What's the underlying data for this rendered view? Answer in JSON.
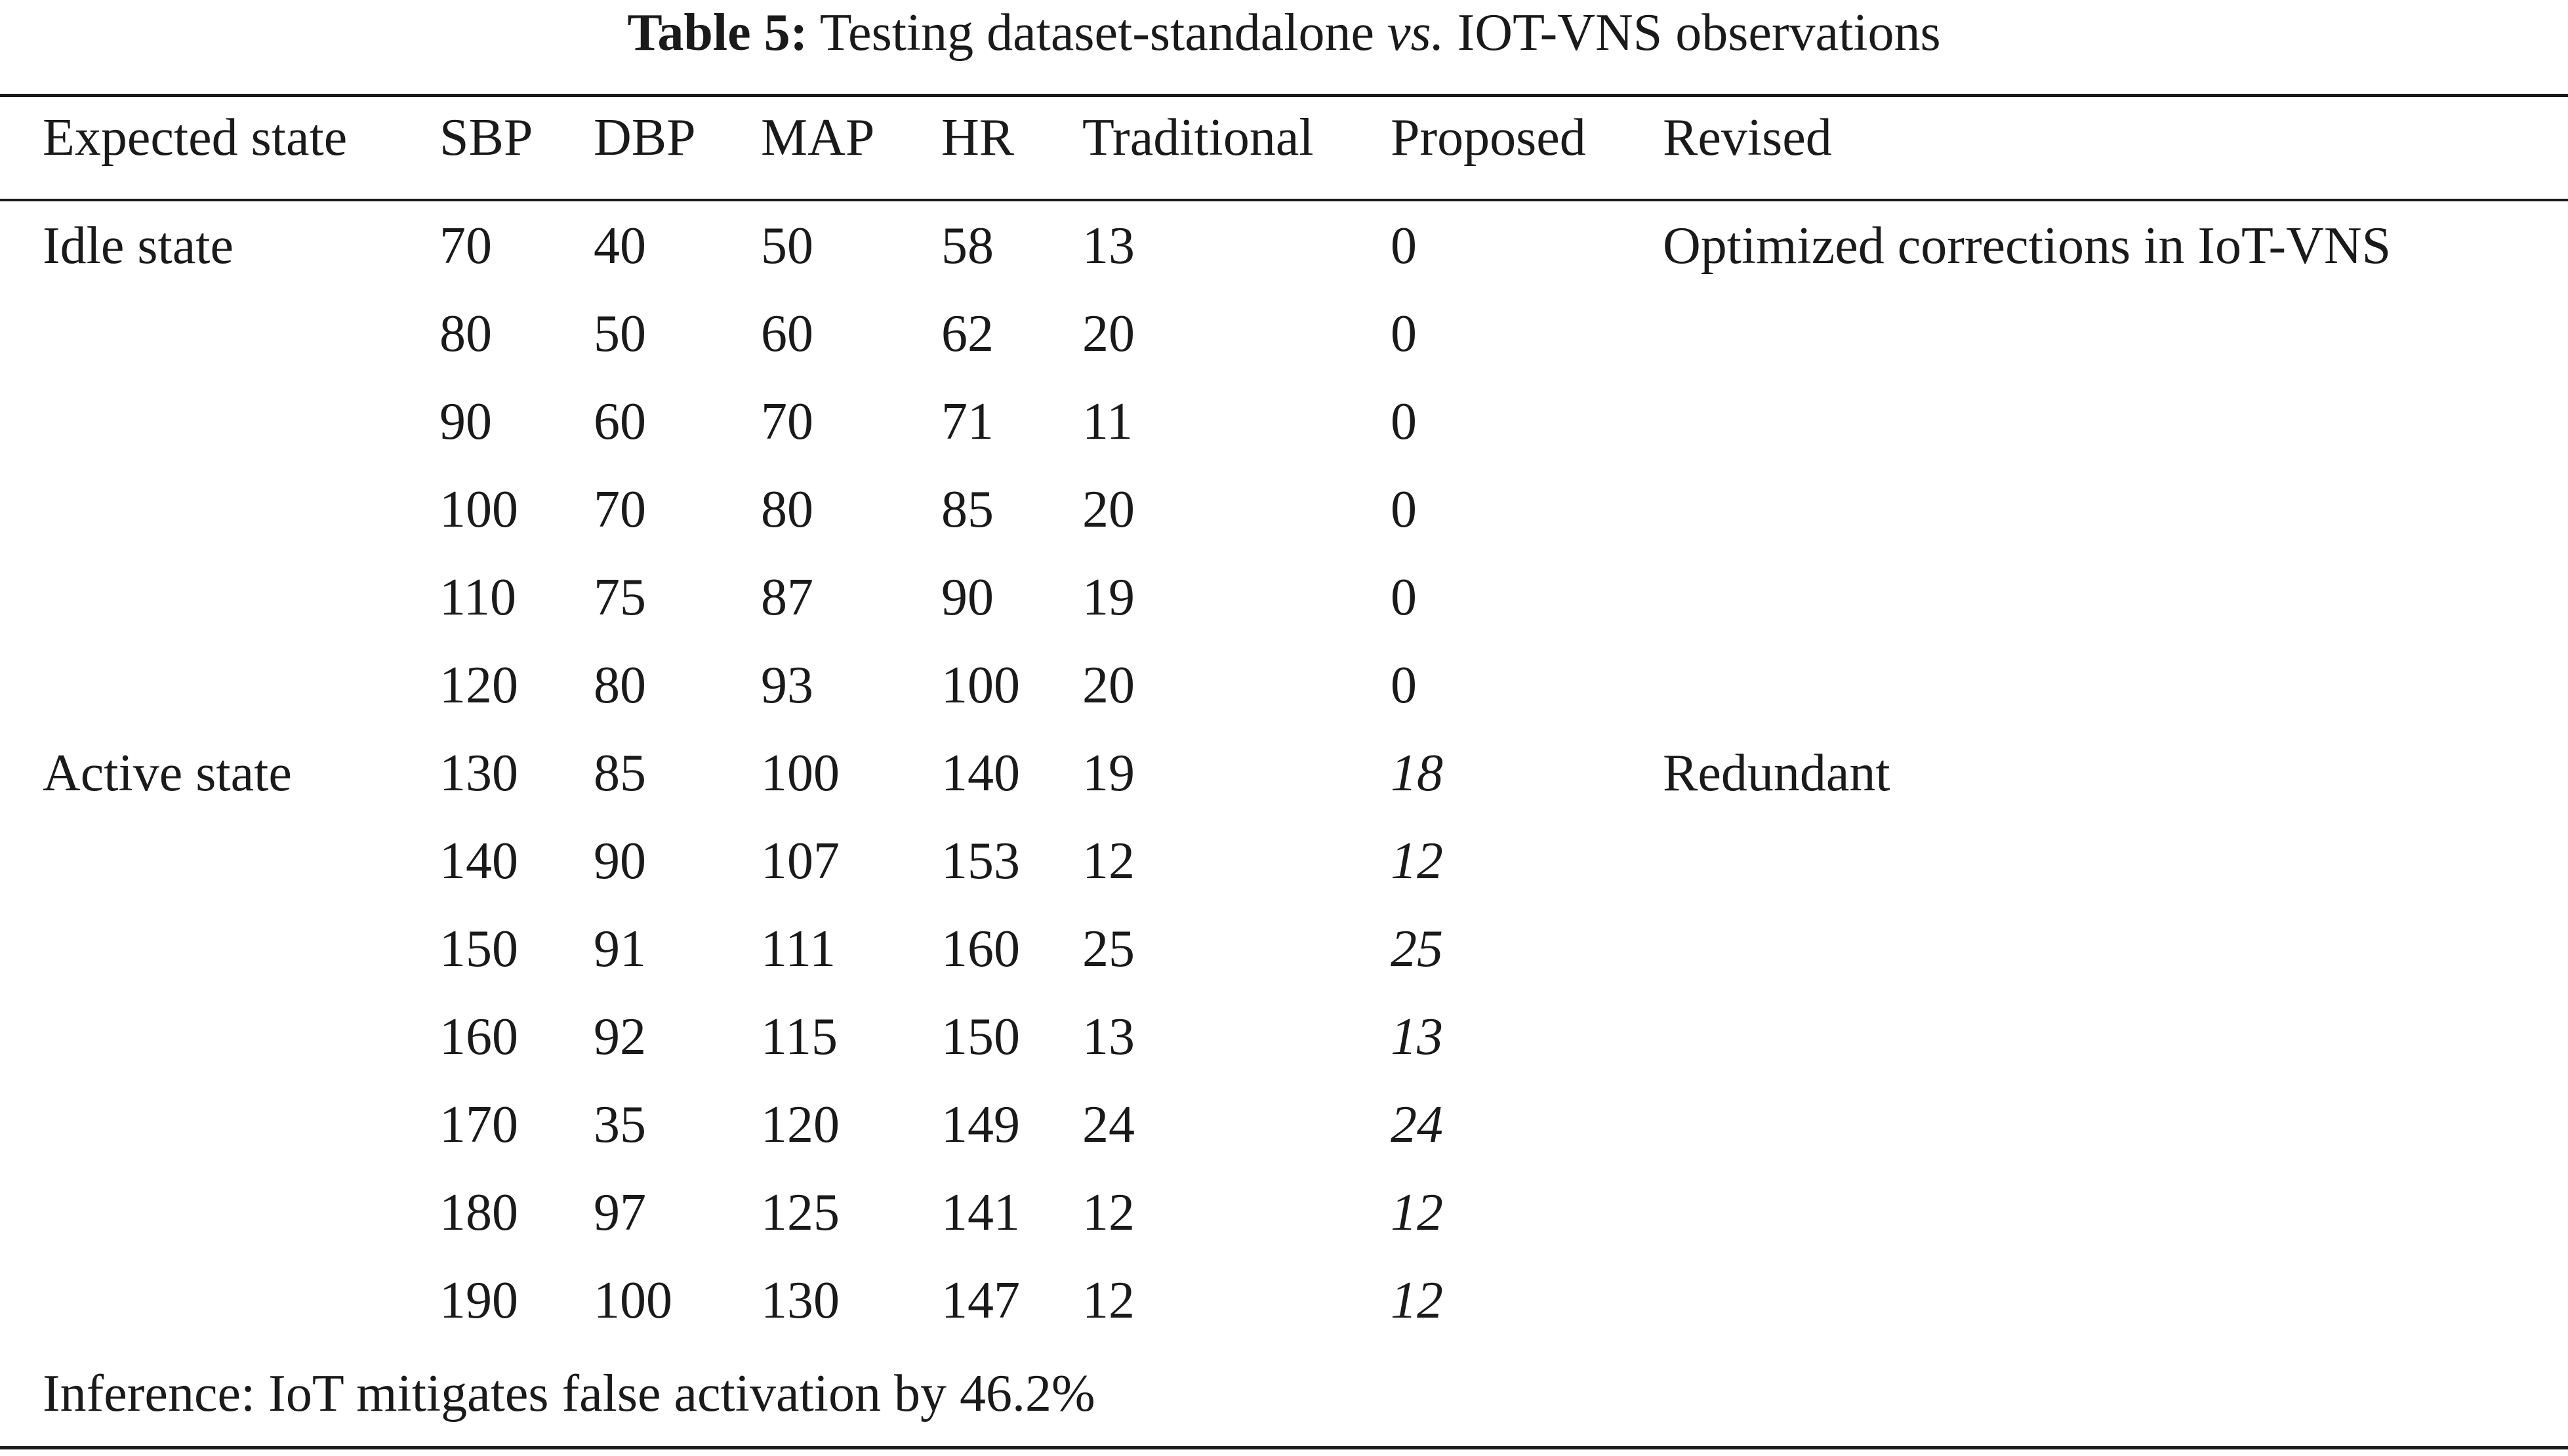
{
  "caption": {
    "label": "Table 5:",
    "text_before": " Testing dataset-standalone ",
    "vs": "vs.",
    "text_after": " IOT-VNS observations"
  },
  "columns": [
    "Expected state",
    "SBP",
    "DBP",
    "MAP",
    "HR",
    "Traditional",
    "Proposed",
    "Revised"
  ],
  "rows": [
    {
      "state": "Idle state",
      "sbp": "70",
      "dbp": "40",
      "map": "50",
      "hr": "58",
      "traditional": "13",
      "proposed": "0",
      "revised": "Optimized corrections in IoT-VNS"
    },
    {
      "state": "",
      "sbp": "80",
      "dbp": "50",
      "map": "60",
      "hr": "62",
      "traditional": "20",
      "proposed": "0",
      "revised": ""
    },
    {
      "state": "",
      "sbp": "90",
      "dbp": "60",
      "map": "70",
      "hr": "71",
      "traditional": "11",
      "proposed": "0",
      "revised": ""
    },
    {
      "state": "",
      "sbp": "100",
      "dbp": "70",
      "map": "80",
      "hr": "85",
      "traditional": "20",
      "proposed": "0",
      "revised": ""
    },
    {
      "state": "",
      "sbp": "110",
      "dbp": "75",
      "map": "87",
      "hr": "90",
      "traditional": "19",
      "proposed": "0",
      "revised": ""
    },
    {
      "state": "",
      "sbp": "120",
      "dbp": "80",
      "map": "93",
      "hr": "100",
      "traditional": "20",
      "proposed": "0",
      "revised": ""
    },
    {
      "state": "Active state",
      "sbp": "130",
      "dbp": "85",
      "map": "100",
      "hr": "140",
      "traditional": "19",
      "proposed": "18",
      "revised": "Redundant"
    },
    {
      "state": "",
      "sbp": "140",
      "dbp": "90",
      "map": "107",
      "hr": "153",
      "traditional": "12",
      "proposed": "12",
      "revised": ""
    },
    {
      "state": "",
      "sbp": "150",
      "dbp": "91",
      "map": "111",
      "hr": "160",
      "traditional": "25",
      "proposed": "25",
      "revised": ""
    },
    {
      "state": "",
      "sbp": "160",
      "dbp": "92",
      "map": "115",
      "hr": "150",
      "traditional": "13",
      "proposed": "13",
      "revised": ""
    },
    {
      "state": "",
      "sbp": "170",
      "dbp": "35",
      "map": "120",
      "hr": "149",
      "traditional": "24",
      "proposed": "24",
      "revised": ""
    },
    {
      "state": "",
      "sbp": "180",
      "dbp": "97",
      "map": "125",
      "hr": "141",
      "traditional": "12",
      "proposed": "12",
      "revised": ""
    },
    {
      "state": "",
      "sbp": "190",
      "dbp": "100",
      "map": "130",
      "hr": "147",
      "traditional": "12",
      "proposed": "12",
      "revised": ""
    }
  ],
  "footnote": "Inference: IoT mitigates false activation by 46.2%"
}
